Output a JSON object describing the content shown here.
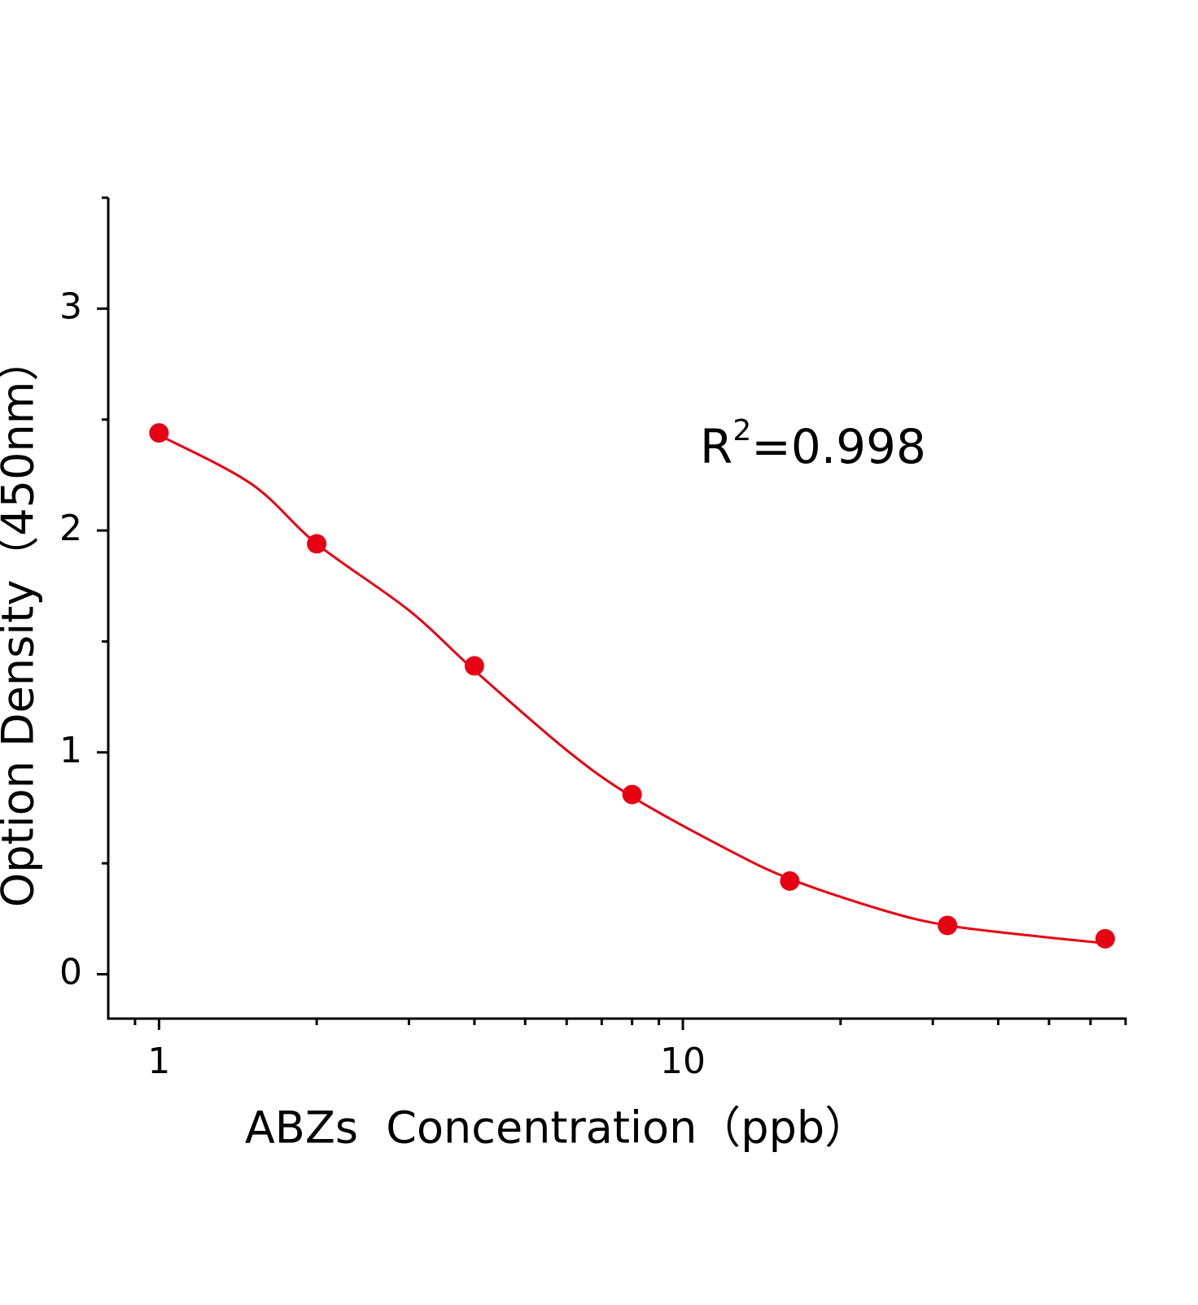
{
  "chart_data": {
    "type": "scatter",
    "xlabel": "ABZs  Concentration（ppb）",
    "ylabel": "Option Density（450nm）",
    "annotation": [
      "R",
      "2",
      "=0.998"
    ],
    "xscale": "log",
    "xlim": [
      0.8,
      70
    ],
    "xticks": [
      1,
      10
    ],
    "xminor_ticks": [
      0.9,
      2,
      3,
      4,
      5,
      6,
      7,
      8,
      9,
      20,
      30,
      40,
      50,
      60,
      70
    ],
    "ylim": [
      -0.2,
      3.5
    ],
    "yticks": [
      0,
      1,
      2,
      3
    ],
    "yminor_ticks": [
      0.5,
      1.5,
      2.5,
      3.5
    ],
    "color": "#e60012",
    "x": [
      1,
      2,
      4,
      8,
      16,
      32,
      64
    ],
    "values": [
      2.44,
      1.94,
      1.39,
      0.81,
      0.42,
      0.22,
      0.16
    ],
    "fit": {
      "x": [
        1,
        1.5,
        2,
        3,
        4,
        6,
        8,
        12,
        16,
        24,
        32,
        48,
        64
      ],
      "values": [
        2.43,
        2.21,
        1.94,
        1.64,
        1.37,
        1.01,
        0.8,
        0.57,
        0.43,
        0.29,
        0.22,
        0.17,
        0.14
      ]
    }
  }
}
